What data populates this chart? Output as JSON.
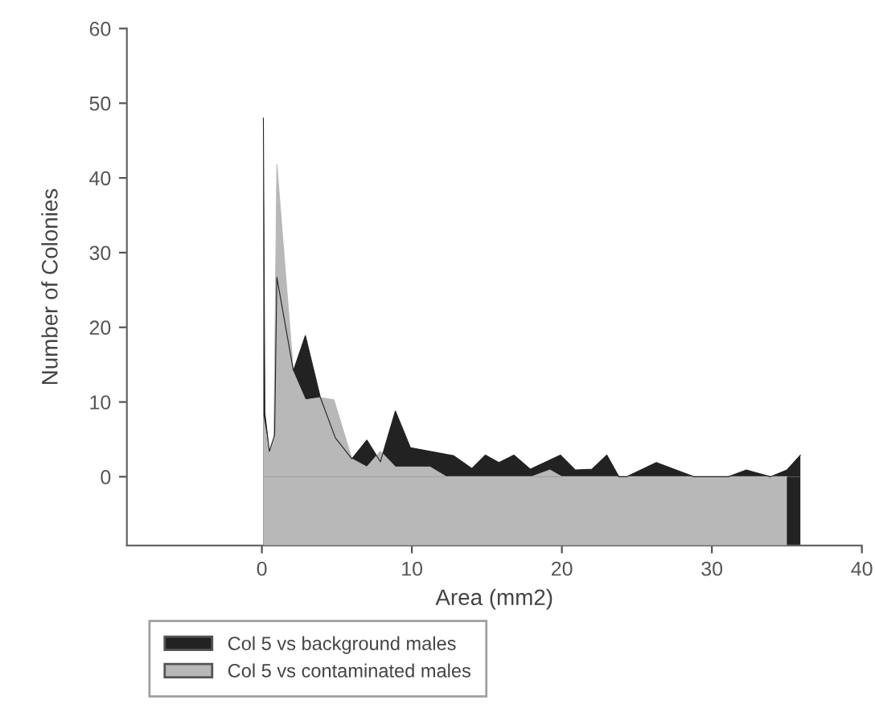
{
  "chart_data": {
    "type": "area",
    "xlabel": "Area (mm2)",
    "ylabel": "Number of Colonies",
    "xlim": [
      -9,
      40
    ],
    "ylim": [
      -9.2,
      60
    ],
    "xticks": [
      0,
      10,
      20,
      30,
      40
    ],
    "yticks": [
      0,
      10,
      20,
      30,
      40,
      50,
      60
    ],
    "grid": false,
    "legend": "bottom left",
    "series": [
      {
        "name": "Col 5 vs background males",
        "color": "#222222",
        "x": [
          0.1,
          0.2,
          0.5,
          0.85,
          1.0,
          2.1,
          2.9,
          3.9,
          4.9,
          6.0,
          7.0,
          7.9,
          8.9,
          9.9,
          11.2,
          12.8,
          14.0,
          14.9,
          15.8,
          16.8,
          17.9,
          19.9,
          20.9,
          22.0,
          23.0,
          23.8,
          24.3,
          26.3,
          28.8,
          31.1,
          32.3,
          33.9,
          35.0,
          35.9
        ],
        "values": [
          48,
          8.5,
          3.4,
          5.6,
          26.7,
          14.2,
          18.9,
          10.6,
          5.2,
          2.4,
          4.9,
          2.0,
          8.8,
          3.9,
          3.4,
          2.8,
          1.1,
          2.9,
          1.9,
          2.9,
          1.0,
          2.9,
          0.9,
          1.0,
          2.9,
          0,
          0,
          1.9,
          0,
          0,
          0.9,
          0,
          0.9,
          2.9
        ]
      },
      {
        "name": "Col 5 vs contaminated males",
        "color": "#b8b8b8",
        "x": [
          0.1,
          0.5,
          0.8,
          1.0,
          2.1,
          2.9,
          3.9,
          4.8,
          6.0,
          7.0,
          7.9,
          8.9,
          9.9,
          11.2,
          12.3,
          14.0,
          18.0,
          19.2,
          20.0,
          35.0
        ],
        "values": [
          8,
          3.4,
          5,
          41.8,
          14,
          10.3,
          10.6,
          10.3,
          2.4,
          1.3,
          3.4,
          1.3,
          1.3,
          1.3,
          0,
          0,
          0,
          0.9,
          0,
          0
        ]
      }
    ]
  }
}
